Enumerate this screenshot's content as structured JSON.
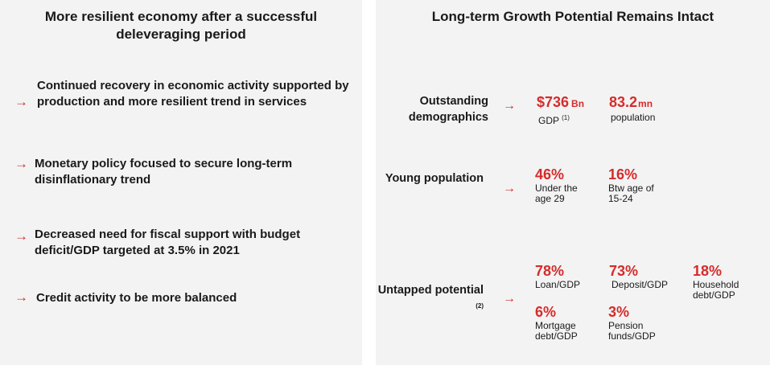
{
  "left": {
    "title": "More resilient economy after a successful deleveraging period",
    "bullets": [
      "Continued recovery in economic activity supported by production and more resilient trend in services",
      "Monetary policy focused to secure long-term disinflationary trend",
      "Decreased need for fiscal support with budget deficit/GDP targeted at 3.5% in 2021",
      "Credit activity to be more balanced"
    ],
    "arrow_glyph": "→"
  },
  "right": {
    "title": "Long-term Growth Potential Remains Intact",
    "rows": [
      {
        "label": "Outstanding demographics",
        "stats": [
          {
            "value": "$736",
            "unit": "Bn",
            "caption": "GDP",
            "footnote": "(1)"
          },
          {
            "value": "83.2",
            "unit": "mn",
            "caption": "population"
          }
        ]
      },
      {
        "label": "Young population",
        "stats": [
          {
            "value": "46%",
            "caption": "Under the age 29"
          },
          {
            "value": "16%",
            "caption": "Btw age of 15-24"
          }
        ]
      },
      {
        "label": "Untapped potential",
        "label_footnote": "(2)",
        "stats": [
          {
            "value": "78%",
            "caption": "Loan/GDP"
          },
          {
            "value": "73%",
            "caption": "Deposit/GDP"
          },
          {
            "value": "18%",
            "caption": "Household debt/GDP"
          },
          {
            "value": "6%",
            "caption": "Mortgage debt/GDP"
          },
          {
            "value": "3%",
            "caption": "Pension funds/GDP"
          }
        ]
      }
    ]
  },
  "colors": {
    "accent": "#d62b2b",
    "panel_bg": "#f3f3f3",
    "text": "#1a1a1a"
  },
  "icons": [
    "arrow-right-icon"
  ]
}
